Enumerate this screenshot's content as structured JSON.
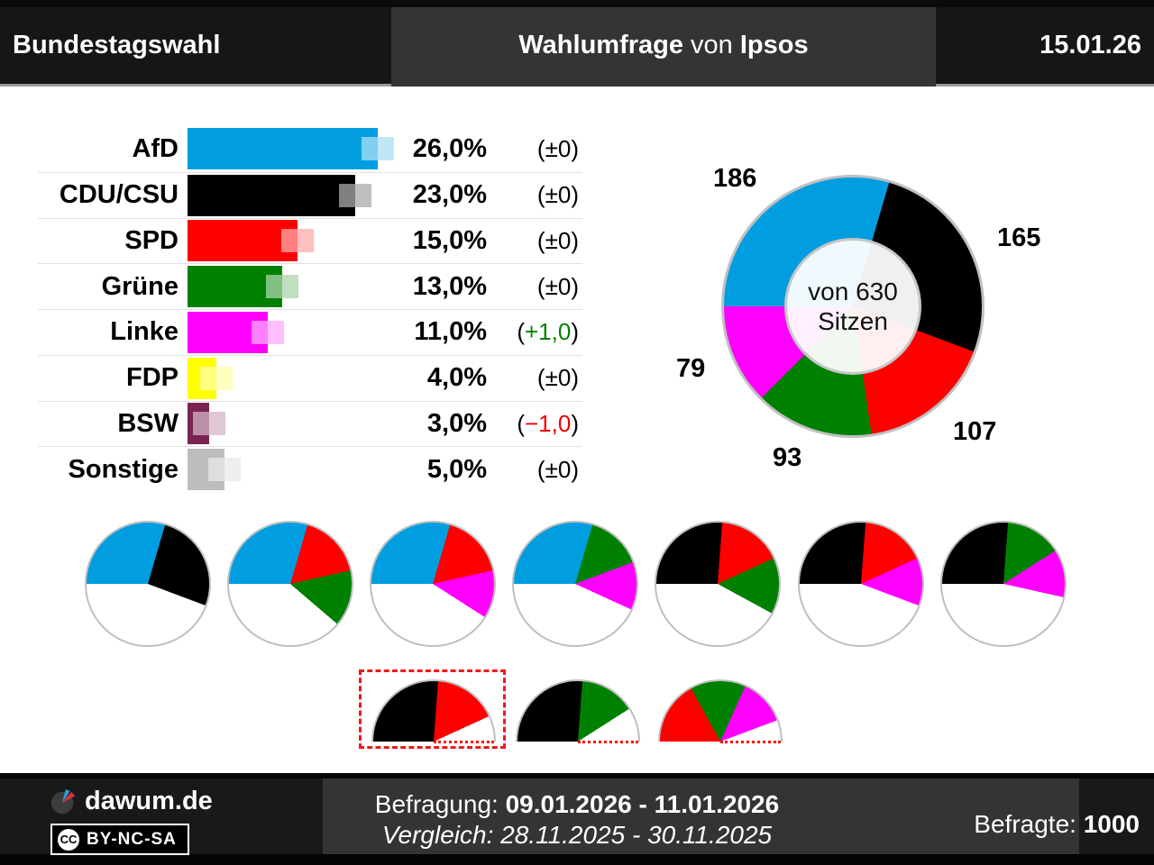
{
  "header": {
    "title_left": "Bundestagswahl",
    "center_part1": "Wahlumfrage",
    "center_part2": " von ",
    "center_part3": "Ipsos",
    "date": "15.01.26"
  },
  "party_colors": {
    "AfD": "#009ee0",
    "CDU/CSU": "#000000",
    "SPD": "#ff0000",
    "Grüne": "#008000",
    "Linke": "#ff00ff",
    "FDP": "#ffff00",
    "BSW": "#792350",
    "Sonstige": "#bdbdbd"
  },
  "change_colors": {
    "positive": "#008000",
    "negative": "#ee0000",
    "zero": "#000000"
  },
  "chart_data": [
    {
      "type": "bar",
      "orientation": "horizontal",
      "title": "Wahlumfrage Ergebnisse",
      "categories": [
        "AfD",
        "CDU/CSU",
        "SPD",
        "Grüne",
        "Linke",
        "FDP",
        "BSW",
        "Sonstige"
      ],
      "ids": [
        "afd",
        "cdu-csu",
        "spd",
        "gruene",
        "linke",
        "fdp",
        "bsw",
        "sonstige"
      ],
      "values": [
        26.0,
        23.0,
        15.0,
        13.0,
        11.0,
        4.0,
        3.0,
        5.0
      ],
      "value_labels": [
        "26,0%",
        "23,0%",
        "15,0%",
        "13,0%",
        "11,0%",
        "4,0%",
        "3,0%",
        "5,0%"
      ],
      "changes": [
        0,
        0,
        0,
        0,
        1.0,
        0,
        -1.0,
        0
      ],
      "change_cores": [
        "±0",
        "±0",
        "±0",
        "±0",
        "+1,0",
        "±0",
        "−1,0",
        "±0"
      ],
      "unit": "%",
      "xlim": [
        0,
        28.9
      ]
    },
    {
      "type": "pie",
      "subtype": "donut",
      "title": "Sitzverteilung",
      "center_line1": "von 630",
      "center_line2": "Sitzen",
      "total_seats": 630,
      "labels": [
        "AfD",
        "CDU/CSU",
        "SPD",
        "Grüne",
        "Linke"
      ],
      "values": [
        186,
        165,
        107,
        93,
        79
      ],
      "start_angle": "left",
      "direction": "clockwise"
    },
    {
      "type": "pie",
      "subtype": "coalition-pies",
      "total_seats": 630,
      "pies": [
        {
          "id": "afd-cdu",
          "parties": [
            "AfD",
            "CDU/CSU"
          ],
          "seats": [
            186,
            165
          ]
        },
        {
          "id": "afd-spd-gruene",
          "parties": [
            "AfD",
            "SPD",
            "Grüne"
          ],
          "seats": [
            186,
            107,
            93
          ]
        },
        {
          "id": "afd-spd-linke",
          "parties": [
            "AfD",
            "SPD",
            "Linke"
          ],
          "seats": [
            186,
            107,
            79
          ]
        },
        {
          "id": "afd-gruene-linke",
          "parties": [
            "AfD",
            "Grüne",
            "Linke"
          ],
          "seats": [
            186,
            93,
            79
          ]
        },
        {
          "id": "cdu-spd-gruene",
          "parties": [
            "CDU/CSU",
            "SPD",
            "Grüne"
          ],
          "seats": [
            165,
            107,
            93
          ]
        },
        {
          "id": "cdu-spd-linke",
          "parties": [
            "CDU/CSU",
            "SPD",
            "Linke"
          ],
          "seats": [
            165,
            107,
            79
          ]
        },
        {
          "id": "cdu-gruene-linke",
          "parties": [
            "CDU/CSU",
            "Grüne",
            "Linke"
          ],
          "seats": [
            165,
            93,
            79
          ]
        }
      ]
    },
    {
      "type": "pie",
      "subtype": "majority-half-pies",
      "majority_seats": 315,
      "pies": [
        {
          "id": "cdu-spd",
          "parties": [
            "CDU/CSU",
            "SPD"
          ],
          "seats": [
            165,
            107
          ],
          "highlighted": true
        },
        {
          "id": "cdu-gruene",
          "parties": [
            "CDU/CSU",
            "Grüne"
          ],
          "seats": [
            165,
            93
          ],
          "highlighted": false
        },
        {
          "id": "spd-gruene-linke",
          "parties": [
            "SPD",
            "Grüne",
            "Linke"
          ],
          "seats": [
            107,
            93,
            79
          ],
          "highlighted": false
        }
      ]
    }
  ],
  "footer": {
    "brand": "dawum.de",
    "license": "BY-NC-SA",
    "cc_label": "CC",
    "survey_label": "Befragung: ",
    "survey_period": "09.01.2026 - 11.01.2026",
    "comparison_line": "Vergleich: 28.11.2025 - 30.11.2025",
    "respondents_label": "Befragte: ",
    "respondents_value": "1000"
  }
}
